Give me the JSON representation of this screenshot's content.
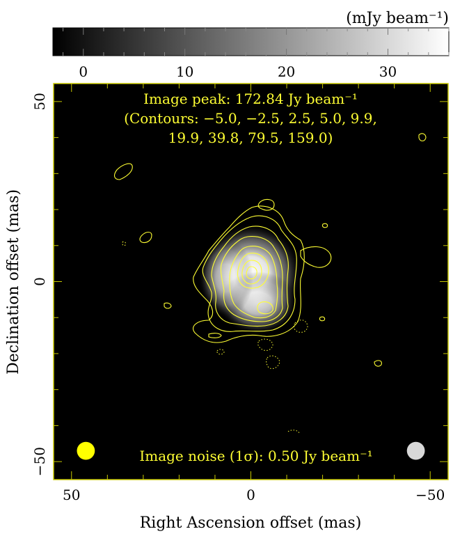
{
  "chart_data": {
    "type": "heatmap",
    "title": "",
    "xlabel": "Right Ascension offset (mas)",
    "ylabel": "Declination offset (mas)",
    "xlim": [
      55,
      -55
    ],
    "ylim": [
      -55,
      55
    ],
    "x_ticks": [
      50,
      0,
      -50
    ],
    "y_ticks": [
      50,
      0,
      -50
    ],
    "x_tick_labels": [
      "50",
      "0",
      "−50"
    ],
    "y_tick_labels": [
      "50",
      "0",
      "−50"
    ],
    "colorbar": {
      "label": "(mJy beam⁻¹)",
      "range": [
        -3,
        36
      ],
      "ticks": [
        0,
        10,
        20,
        30
      ],
      "tick_labels": [
        "0",
        "10",
        "20",
        "30"
      ],
      "colormap": "grayscale"
    },
    "annotations": {
      "peak": "Image peak:  172.84 Jy beam⁻¹",
      "contours_line1": "(Contours: −5.0, −2.5, 2.5, 5.0, 9.9,",
      "contours_line2": "19.9, 39.8, 79.5, 159.0)",
      "noise": "Image noise (1σ): 0.50 Jy beam⁻¹"
    },
    "contour_levels": [
      -5.0,
      -2.5,
      2.5,
      5.0,
      9.9,
      19.9,
      39.8,
      79.5,
      159.0
    ],
    "peak_value_jy_per_beam": 172.84,
    "noise_jy_per_beam": 0.5,
    "emission_blobs": [
      {
        "x": 0,
        "y": 2,
        "sx": 6.5,
        "sy": 6.5,
        "amp": 1.0
      },
      {
        "x": -2,
        "y": -6,
        "sx": 5,
        "sy": 4,
        "amp": 0.75
      },
      {
        "x": 7,
        "y": 1,
        "sx": 3.5,
        "sy": 5,
        "amp": 0.55
      }
    ],
    "beam_markers": [
      {
        "name": "beam",
        "x": 46,
        "y": -47,
        "rx": 2.5,
        "ry": 2.5
      },
      {
        "name": "beam-2",
        "x": -46,
        "y": -47,
        "rx": 2.5,
        "ry": 2.5
      }
    ],
    "colors": {
      "contour": "#ffff33",
      "frame": "#c8c800",
      "plot_background": "#000000",
      "beam_fill_left": "#ffff00",
      "beam_fill_right": "#d8d8d8"
    }
  }
}
